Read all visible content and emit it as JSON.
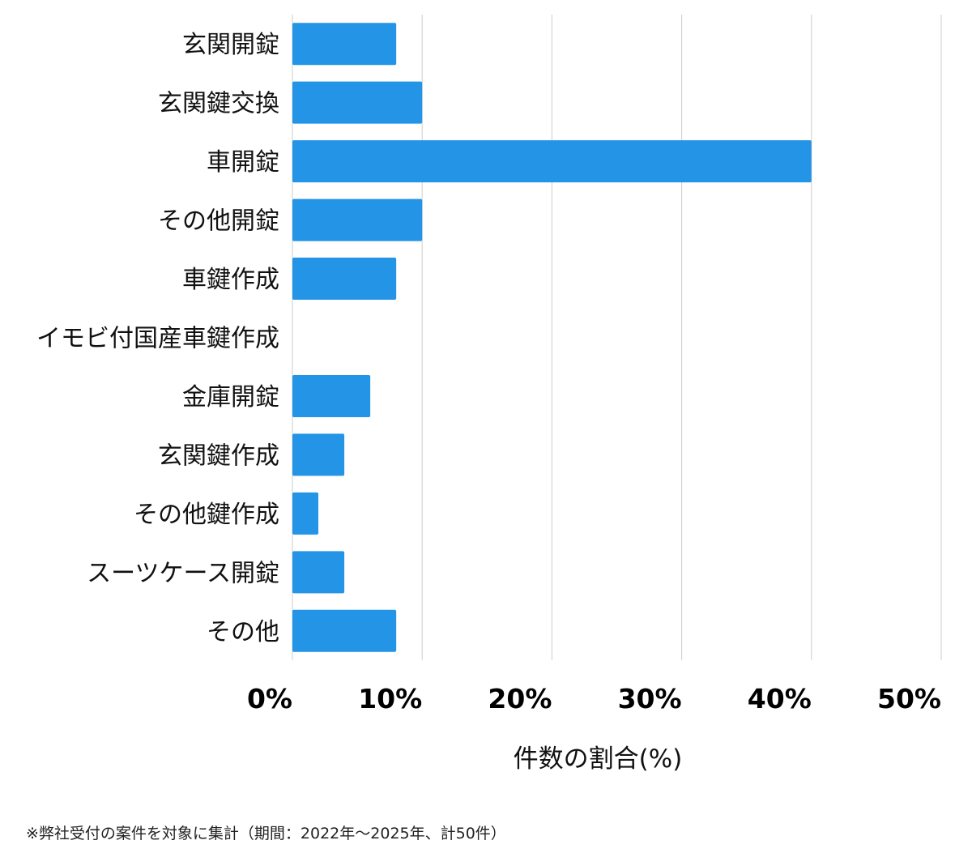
{
  "chart_data": {
    "type": "bar",
    "orientation": "horizontal",
    "categories": [
      "玄関開錠",
      "玄関鍵交換",
      "車開錠",
      "その他開錠",
      "車鍵作成",
      "イモビ付国産車鍵作成",
      "金庫開錠",
      "玄関鍵作成",
      "その他鍵作成",
      "スーツケース開錠",
      "その他"
    ],
    "values": [
      8,
      10,
      40,
      10,
      8,
      0,
      6,
      4,
      2,
      4,
      8
    ],
    "xlim": [
      0,
      50
    ],
    "xticks": [
      "0%",
      "10%",
      "20%",
      "30%",
      "40%",
      "50%"
    ],
    "xlabel": "件数の割合(%)",
    "grid": "vertical",
    "bar_color": "#2394e6",
    "grid_color": "#cccccc"
  },
  "footnote": "※弊社受付の案件を対象に集計（期間：2022年〜2025年、計50件）"
}
